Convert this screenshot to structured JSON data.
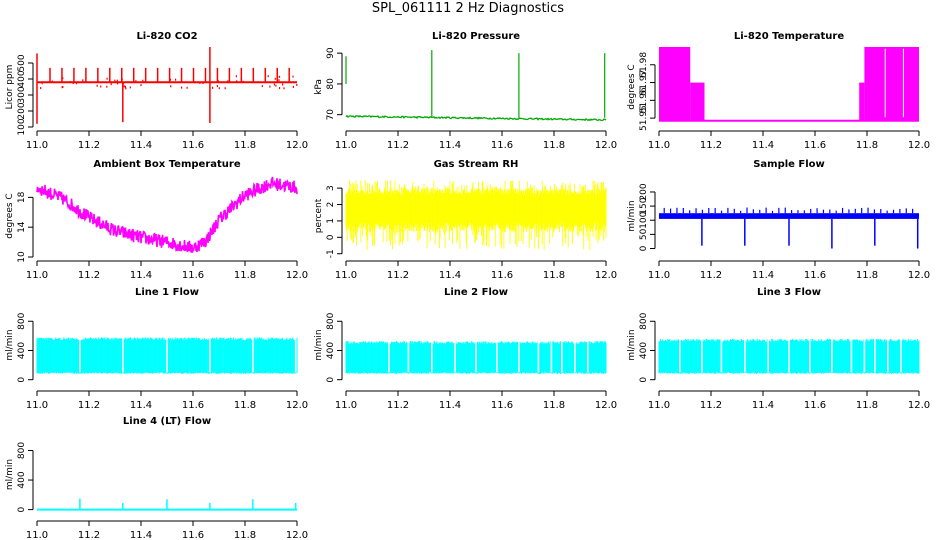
{
  "figure_title": "SPL_061111  2 Hz Diagnostics",
  "chart_data": [
    {
      "type": "line",
      "id": "co2",
      "title": "Li-820 CO2",
      "ylabel": "Licor ppm",
      "color": "#ff0000",
      "xlim": [
        11.0,
        12.0
      ],
      "ylim": [
        100,
        600
      ],
      "xticks": [
        11.0,
        11.2,
        11.4,
        11.6,
        11.8,
        12.0
      ],
      "yticks": [
        100,
        200,
        300,
        400,
        500
      ],
      "style": "constant-with-spikes",
      "series": [
        {
          "baseline": 380,
          "noise_range": [
            370,
            390
          ],
          "spike_max_typical": 470,
          "large_spikes": [
            {
              "x": 11.0,
              "min": 120,
              "max": 560
            },
            {
              "x": 11.33,
              "min": 130,
              "max": 380
            },
            {
              "x": 11.665,
              "min": 125,
              "max": 600
            }
          ]
        }
      ]
    },
    {
      "type": "line",
      "id": "pressure",
      "title": "Li-820 Pressure",
      "ylabel": "kPa",
      "color": "#00aa00",
      "xlim": [
        11.0,
        12.0
      ],
      "ylim": [
        66,
        92
      ],
      "xticks": [
        11.0,
        11.2,
        11.4,
        11.6,
        11.8,
        12.0
      ],
      "yticks": [
        70,
        80,
        90
      ],
      "style": "drift-with-spikes",
      "series": [
        {
          "start": 69.5,
          "end": 68.3,
          "spikes": [
            {
              "x": 11.0,
              "min": 80,
              "max": 89
            },
            {
              "x": 11.33,
              "min": 69,
              "max": 91
            },
            {
              "x": 11.665,
              "min": 69,
              "max": 90
            },
            {
              "x": 11.995,
              "min": 69,
              "max": 90
            }
          ]
        }
      ]
    },
    {
      "type": "area",
      "id": "licor-temp",
      "title": "Li-820 Temperature",
      "ylabel": "degrees C",
      "color": "#ff00ff",
      "xlim": [
        11.0,
        12.0
      ],
      "ylim": [
        51.945,
        51.99
      ],
      "xticks": [
        11.0,
        11.2,
        11.4,
        11.6,
        11.8,
        12.0
      ],
      "yticks": [
        51.95,
        51.96,
        51.97,
        51.98
      ],
      "style": "digital-bands",
      "series": [
        {
          "floor": 51.9485,
          "bands": [
            {
              "x0": 11.0,
              "x1": 11.12,
              "top": 51.99
            },
            {
              "x0": 11.12,
              "x1": 11.175,
              "top": 51.97
            },
            {
              "x0": 11.77,
              "x1": 11.79,
              "top": 51.97
            },
            {
              "x0": 11.79,
              "x1": 12.0,
              "top": 51.99
            }
          ]
        }
      ]
    },
    {
      "type": "line",
      "id": "ambient-temp",
      "title": "Ambient Box Temperature",
      "ylabel": "degrees C",
      "color": "#ff00ff",
      "xlim": [
        11.0,
        12.0
      ],
      "ylim": [
        10,
        21
      ],
      "xticks": [
        11.0,
        11.2,
        11.4,
        11.6,
        11.8,
        12.0
      ],
      "yticks": [
        10,
        14,
        18
      ],
      "style": "noisy-curve",
      "series": [
        {
          "x": [
            11.0,
            11.1,
            11.2,
            11.3,
            11.4,
            11.5,
            11.6,
            11.65,
            11.7,
            11.8,
            11.9,
            12.0
          ],
          "y": [
            19.3,
            17.8,
            15.3,
            13.5,
            12.6,
            12.0,
            11.2,
            12.2,
            15.0,
            18.3,
            19.9,
            19.3
          ],
          "noise": 0.9
        }
      ]
    },
    {
      "type": "area",
      "id": "rh",
      "title": "Gas Stream RH",
      "ylabel": "percent",
      "color": "#ffff00",
      "xlim": [
        11.0,
        12.0
      ],
      "ylim": [
        -1.2,
        3.8
      ],
      "xticks": [
        11.0,
        11.2,
        11.4,
        11.6,
        11.8,
        12.0
      ],
      "yticks": [
        -1,
        0,
        1,
        2,
        3
      ],
      "style": "noise-band",
      "series": [
        {
          "core_min": 0.3,
          "core_max": 3.0,
          "spike_min": -0.8,
          "spike_max": 3.5
        }
      ]
    },
    {
      "type": "line",
      "id": "sample-flow",
      "title": "Sample Flow",
      "ylabel": "ml/min",
      "color": "#0000ff",
      "xlim": [
        11.0,
        12.0
      ],
      "ylim": [
        -30,
        260
      ],
      "xticks": [
        11.0,
        11.2,
        11.4,
        11.6,
        11.8,
        12.0
      ],
      "yticks": [
        0,
        50,
        100,
        150,
        200
      ],
      "style": "band-with-dips",
      "series": [
        {
          "band_min": 105,
          "band_max": 125,
          "spike_max": 145,
          "dips": [
            {
              "x": 11.165,
              "min": 10
            },
            {
              "x": 11.33,
              "min": 10
            },
            {
              "x": 11.5,
              "min": 10
            },
            {
              "x": 11.665,
              "min": 0
            },
            {
              "x": 11.83,
              "min": 10
            },
            {
              "x": 11.995,
              "min": 0
            }
          ]
        }
      ]
    },
    {
      "type": "area",
      "id": "line1",
      "title": "Line 1 Flow",
      "ylabel": "ml/min",
      "color": "#00ffff",
      "xlim": [
        11.0,
        12.0
      ],
      "ylim": [
        -100,
        1050
      ],
      "xticks": [
        11.0,
        11.2,
        11.4,
        11.6,
        11.8,
        12.0
      ],
      "yticks": [
        0,
        400,
        800
      ],
      "style": "flow-band",
      "series": [
        {
          "band_min": 100,
          "band_max": 560,
          "gaps": [
            11.165,
            11.33,
            11.5,
            11.665,
            11.83,
            11.995
          ]
        }
      ]
    },
    {
      "type": "area",
      "id": "line2",
      "title": "Line 2 Flow",
      "ylabel": "ml/min",
      "color": "#00ffff",
      "xlim": [
        11.0,
        12.0
      ],
      "ylim": [
        -100,
        1050
      ],
      "xticks": [
        11.0,
        11.2,
        11.4,
        11.6,
        11.8,
        12.0
      ],
      "yticks": [
        0,
        400,
        800
      ],
      "style": "flow-band",
      "series": [
        {
          "band_min": 100,
          "band_max": 510,
          "gaps": [
            11.165,
            11.24,
            11.33,
            11.42,
            11.5,
            11.58,
            11.665,
            11.74,
            11.79,
            11.83,
            11.88,
            11.93
          ]
        }
      ]
    },
    {
      "type": "area",
      "id": "line3",
      "title": "Line 3 Flow",
      "ylabel": "ml/min",
      "color": "#00ffff",
      "xlim": [
        11.0,
        12.0
      ],
      "ylim": [
        -100,
        1050
      ],
      "xticks": [
        11.0,
        11.2,
        11.4,
        11.6,
        11.8,
        12.0
      ],
      "yticks": [
        0,
        400,
        800
      ],
      "style": "flow-band",
      "series": [
        {
          "band_min": 100,
          "band_max": 540,
          "gaps": [
            11.08,
            11.165,
            11.24,
            11.33,
            11.42,
            11.5,
            11.58,
            11.665,
            11.74,
            11.79,
            11.83,
            11.88,
            11.93
          ]
        }
      ]
    },
    {
      "type": "line",
      "id": "line4",
      "title": "Line 4 (LT) Flow",
      "ylabel": "ml/min",
      "color": "#00ffff",
      "xlim": [
        11.0,
        12.0
      ],
      "ylim": [
        -100,
        1050
      ],
      "xticks": [
        11.0,
        11.2,
        11.4,
        11.6,
        11.8,
        12.0
      ],
      "yticks": [
        0,
        400,
        800
      ],
      "style": "constant-with-spikes",
      "series": [
        {
          "baseline": 0,
          "noise_range": [
            0,
            5
          ],
          "spike_max_typical": 0,
          "large_spikes": [
            {
              "x": 11.165,
              "min": 0,
              "max": 150
            },
            {
              "x": 11.33,
              "min": 0,
              "max": 90
            },
            {
              "x": 11.5,
              "min": 0,
              "max": 140
            },
            {
              "x": 11.665,
              "min": 0,
              "max": 90
            },
            {
              "x": 11.83,
              "min": 0,
              "max": 140
            },
            {
              "x": 11.995,
              "min": 0,
              "max": 90
            }
          ]
        }
      ]
    }
  ]
}
